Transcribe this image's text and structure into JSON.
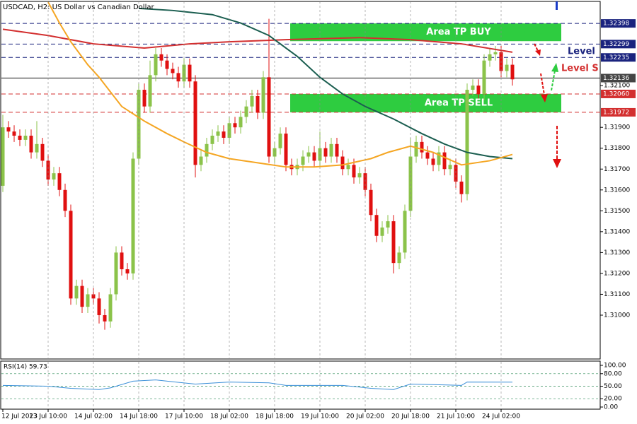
{
  "chart_data": {
    "type": "candlestick",
    "title": "USDCAD, H2:  US Dollar vs Canadian Dollar",
    "up_color": "#8bc34a",
    "down_color": "#e01010",
    "categories": [
      "12 Jul 2023",
      null,
      null,
      null,
      null,
      null,
      null,
      null,
      "13 Jul 10:00",
      null,
      null,
      null,
      null,
      null,
      null,
      null,
      "14 Jul 02:00",
      null,
      null,
      null,
      null,
      null,
      null,
      null,
      "14 Jul 18:00",
      null,
      null,
      null,
      null,
      null,
      null,
      null,
      "17 Jul 10:00",
      null,
      null,
      null,
      null,
      null,
      null,
      null,
      "18 Jul 02:00",
      null,
      null,
      null,
      null,
      null,
      null,
      null,
      "18 Jul 18:00",
      null,
      null,
      null,
      null,
      null,
      null,
      null,
      "19 Jul 10:00",
      null,
      null,
      null,
      null,
      null,
      null,
      null,
      "20 Jul 02:00",
      null,
      null,
      null,
      null,
      null,
      null,
      null,
      "20 Jul 18:00",
      null,
      null,
      null,
      null,
      null,
      null,
      null,
      "21 Jul 10:00",
      null,
      null,
      null,
      null,
      null,
      null,
      null,
      "24 Jul 02:00",
      null,
      null
    ],
    "open": [
      1.3162,
      1.319,
      1.3188,
      1.3186,
      1.3184,
      1.3186,
      1.3178,
      1.3182,
      1.3174,
      1.3165,
      1.3168,
      1.316,
      1.315,
      1.3108,
      1.3114,
      1.3104,
      1.311,
      1.3108,
      1.31,
      1.3097,
      1.311,
      1.313,
      1.3122,
      1.312,
      1.3175,
      1.3208,
      1.32,
      1.3215,
      1.3225,
      1.3222,
      1.3218,
      1.3216,
      1.3212,
      1.322,
      1.3212,
      1.3172,
      1.3176,
      1.3182,
      1.3186,
      1.3188,
      1.3185,
      1.3192,
      1.319,
      1.3195,
      1.32,
      1.3205,
      1.3197,
      1.3214,
      1.3176,
      1.318,
      1.3187,
      1.3172,
      1.317,
      1.3172,
      1.3176,
      1.3178,
      1.3174,
      1.318,
      1.3176,
      1.3182,
      1.3176,
      1.317,
      1.3172,
      1.3166,
      1.3168,
      1.316,
      1.3148,
      1.3138,
      1.3142,
      1.3145,
      1.3125,
      1.313,
      1.315,
      1.3176,
      1.3183,
      1.3178,
      1.3175,
      1.3172,
      1.3178,
      1.317,
      1.3172,
      1.3164,
      1.3158,
      1.3208,
      1.321,
      1.3206,
      1.3222,
      1.3225,
      1.3226,
      1.3217,
      1.322
    ],
    "high": [
      1.3196,
      1.3193,
      1.3191,
      1.3189,
      1.3189,
      1.3189,
      1.3193,
      1.3185,
      1.3177,
      1.3171,
      1.3171,
      1.3163,
      1.3153,
      1.3117,
      1.3117,
      1.3113,
      1.3113,
      1.3111,
      1.3103,
      1.3113,
      1.3133,
      1.3133,
      1.3125,
      1.3178,
      1.3211,
      1.3211,
      1.3222,
      1.3228,
      1.3228,
      1.3225,
      1.3221,
      1.3219,
      1.3223,
      1.3223,
      1.3215,
      1.3179,
      1.3185,
      1.3189,
      1.3191,
      1.3191,
      1.3195,
      1.3195,
      1.3198,
      1.3203,
      1.3208,
      1.3208,
      1.3217,
      1.3242,
      1.3183,
      1.319,
      1.319,
      1.3175,
      1.3175,
      1.3179,
      1.3181,
      1.3181,
      1.3188,
      1.3183,
      1.3185,
      1.3185,
      1.3179,
      1.3175,
      1.3175,
      1.3171,
      1.3171,
      1.3163,
      1.3151,
      1.3145,
      1.3148,
      1.3148,
      1.3133,
      1.3153,
      1.3185,
      1.3186,
      1.3186,
      1.3181,
      1.3178,
      1.3181,
      1.3181,
      1.3175,
      1.3175,
      1.3167,
      1.3211,
      1.3213,
      1.3213,
      1.3225,
      1.3228,
      1.3229,
      1.3229,
      1.3223,
      1.3223
    ],
    "low": [
      1.3159,
      1.3185,
      1.3183,
      1.3181,
      1.3181,
      1.3175,
      1.3175,
      1.3171,
      1.3162,
      1.3162,
      1.3157,
      1.3147,
      1.3105,
      1.3105,
      1.3101,
      1.3101,
      1.3105,
      1.3096,
      1.3093,
      1.3094,
      1.3107,
      1.3119,
      1.3117,
      1.3117,
      1.3172,
      1.3197,
      1.3197,
      1.3212,
      1.3219,
      1.3215,
      1.3213,
      1.3209,
      1.3209,
      1.3209,
      1.3166,
      1.3169,
      1.3173,
      1.3179,
      1.3183,
      1.3182,
      1.3182,
      1.3187,
      1.3187,
      1.3192,
      1.3197,
      1.3194,
      1.3194,
      1.3173,
      1.3173,
      1.3177,
      1.3169,
      1.3167,
      1.3167,
      1.3169,
      1.3173,
      1.3171,
      1.3171,
      1.3173,
      1.3173,
      1.3173,
      1.3167,
      1.3167,
      1.3163,
      1.3163,
      1.3157,
      1.3145,
      1.3135,
      1.3135,
      1.3139,
      1.312,
      1.3122,
      1.3127,
      1.3147,
      1.3173,
      1.3175,
      1.3172,
      1.3169,
      1.3169,
      1.3167,
      1.3167,
      1.3161,
      1.3154,
      1.3155,
      1.3205,
      1.3203,
      1.3203,
      1.3219,
      1.3222,
      1.3214,
      1.3214,
      1.321
    ],
    "close": [
      1.319,
      1.3188,
      1.3186,
      1.3184,
      1.3186,
      1.3178,
      1.3182,
      1.3174,
      1.3165,
      1.3168,
      1.316,
      1.315,
      1.3108,
      1.3114,
      1.3104,
      1.311,
      1.3108,
      1.31,
      1.3097,
      1.311,
      1.313,
      1.3122,
      1.312,
      1.3175,
      1.3208,
      1.32,
      1.3215,
      1.3225,
      1.3222,
      1.3218,
      1.3216,
      1.3212,
      1.322,
      1.3212,
      1.3172,
      1.3176,
      1.3182,
      1.3186,
      1.3188,
      1.3185,
      1.3192,
      1.319,
      1.3195,
      1.32,
      1.3205,
      1.3197,
      1.3214,
      1.3176,
      1.318,
      1.3187,
      1.3172,
      1.317,
      1.3172,
      1.3176,
      1.3178,
      1.3174,
      1.318,
      1.3176,
      1.3182,
      1.3176,
      1.317,
      1.3172,
      1.3166,
      1.3168,
      1.316,
      1.3148,
      1.3138,
      1.3142,
      1.3145,
      1.3125,
      1.313,
      1.315,
      1.3176,
      1.3183,
      1.3178,
      1.3175,
      1.3172,
      1.3178,
      1.317,
      1.3172,
      1.3164,
      1.3158,
      1.3208,
      1.321,
      1.3206,
      1.3222,
      1.3225,
      1.3226,
      1.3217,
      1.322,
      1.3213
    ],
    "lines": [
      {
        "color": "#d32f2f",
        "x": [
          0,
          8,
          16,
          25,
          33,
          40,
          50,
          63,
          72,
          81,
          90
        ],
        "values": [
          1.3237,
          1.3234,
          1.323,
          1.3228,
          1.323,
          1.3231,
          1.3232,
          1.3233,
          1.3232,
          1.323,
          1.3226
        ]
      },
      {
        "color": "#1b5e50",
        "x": [
          24,
          30,
          37,
          42,
          47,
          52,
          56,
          60,
          64,
          69,
          74,
          78,
          82,
          86,
          90
        ],
        "values": [
          1.3247,
          1.3246,
          1.3244,
          1.324,
          1.3234,
          1.3224,
          1.3214,
          1.3206,
          1.32,
          1.3194,
          1.3187,
          1.3182,
          1.3178,
          1.3176,
          1.3175
        ]
      },
      {
        "color": "#f5a623",
        "x": [
          8,
          10,
          12,
          15,
          17,
          21,
          25,
          29,
          32,
          36,
          40,
          45,
          50,
          55,
          60,
          65,
          68,
          72,
          76,
          81,
          86,
          90
        ],
        "values": [
          1.325,
          1.324,
          1.3231,
          1.322,
          1.3214,
          1.32,
          1.3193,
          1.3187,
          1.3183,
          1.3178,
          1.3175,
          1.3173,
          1.3171,
          1.3171,
          1.3172,
          1.3175,
          1.3178,
          1.3181,
          1.3178,
          1.3172,
          1.3174,
          1.3177
        ]
      }
    ],
    "ylim": [
      1.3079,
      1.325
    ],
    "yticks": [
      {
        "value": 1.31,
        "label": "1.31000"
      },
      {
        "value": 1.311,
        "label": "1.31100"
      },
      {
        "value": 1.312,
        "label": "1.31200"
      },
      {
        "value": 1.313,
        "label": "1.31300"
      },
      {
        "value": 1.314,
        "label": "1.31400"
      },
      {
        "value": 1.315,
        "label": "1.31500"
      },
      {
        "value": 1.316,
        "label": "1.31600"
      },
      {
        "value": 1.317,
        "label": "1.31700"
      },
      {
        "value": 1.318,
        "label": "1.31800"
      },
      {
        "value": 1.319,
        "label": "1.31900"
      },
      {
        "value": 1.321,
        "label": "1.32100"
      }
    ],
    "levels": [
      {
        "value": 1.32398,
        "label": "1.32398",
        "color": "#1a237e",
        "dashed": true
      },
      {
        "value": 1.32299,
        "label": "1.32299",
        "color": "#1a237e",
        "dashed": true
      },
      {
        "value": 1.32235,
        "label": "1.32235",
        "color": "#1a237e",
        "dashed": true
      },
      {
        "value": 1.32136,
        "label": "1.32136",
        "color": "#444444",
        "dashed": false
      },
      {
        "value": 1.3206,
        "label": "1.32060",
        "color": "#d32f2f",
        "dashed": true
      },
      {
        "value": 1.31972,
        "label": "1.31972",
        "color": "#d32f2f",
        "dashed": true
      }
    ],
    "zones": [
      {
        "label": "Area TP BUY",
        "top": 1.32398,
        "bottom": 1.32313,
        "color": "#2ecc40"
      },
      {
        "label": "Area TP SELL",
        "top": 1.3206,
        "bottom": 1.31972,
        "color": "#2ecc40"
      }
    ],
    "annotations": [
      {
        "text": "Level",
        "color": "#1a237e"
      },
      {
        "text": "Level S",
        "color": "#d32f2f"
      }
    ],
    "rsi": {
      "title": "RSI(14) 59.73",
      "color": "#3a8fd8",
      "ylim": [
        0,
        100
      ],
      "yticks": [
        {
          "value": 100,
          "label": "100.00"
        },
        {
          "value": 80,
          "label": "80.00"
        },
        {
          "value": 50,
          "label": "50.00"
        },
        {
          "value": 20,
          "label": "20.00"
        },
        {
          "value": 0,
          "label": "0.00"
        }
      ],
      "x": [
        0,
        8,
        12,
        17,
        19,
        23,
        27,
        34,
        40,
        47,
        50,
        60,
        65,
        69,
        72,
        81,
        82,
        90
      ],
      "values": [
        52,
        50,
        45,
        42,
        46,
        62,
        65,
        55,
        60,
        58,
        52,
        52,
        45,
        42,
        55,
        52,
        60,
        59.73
      ]
    }
  }
}
